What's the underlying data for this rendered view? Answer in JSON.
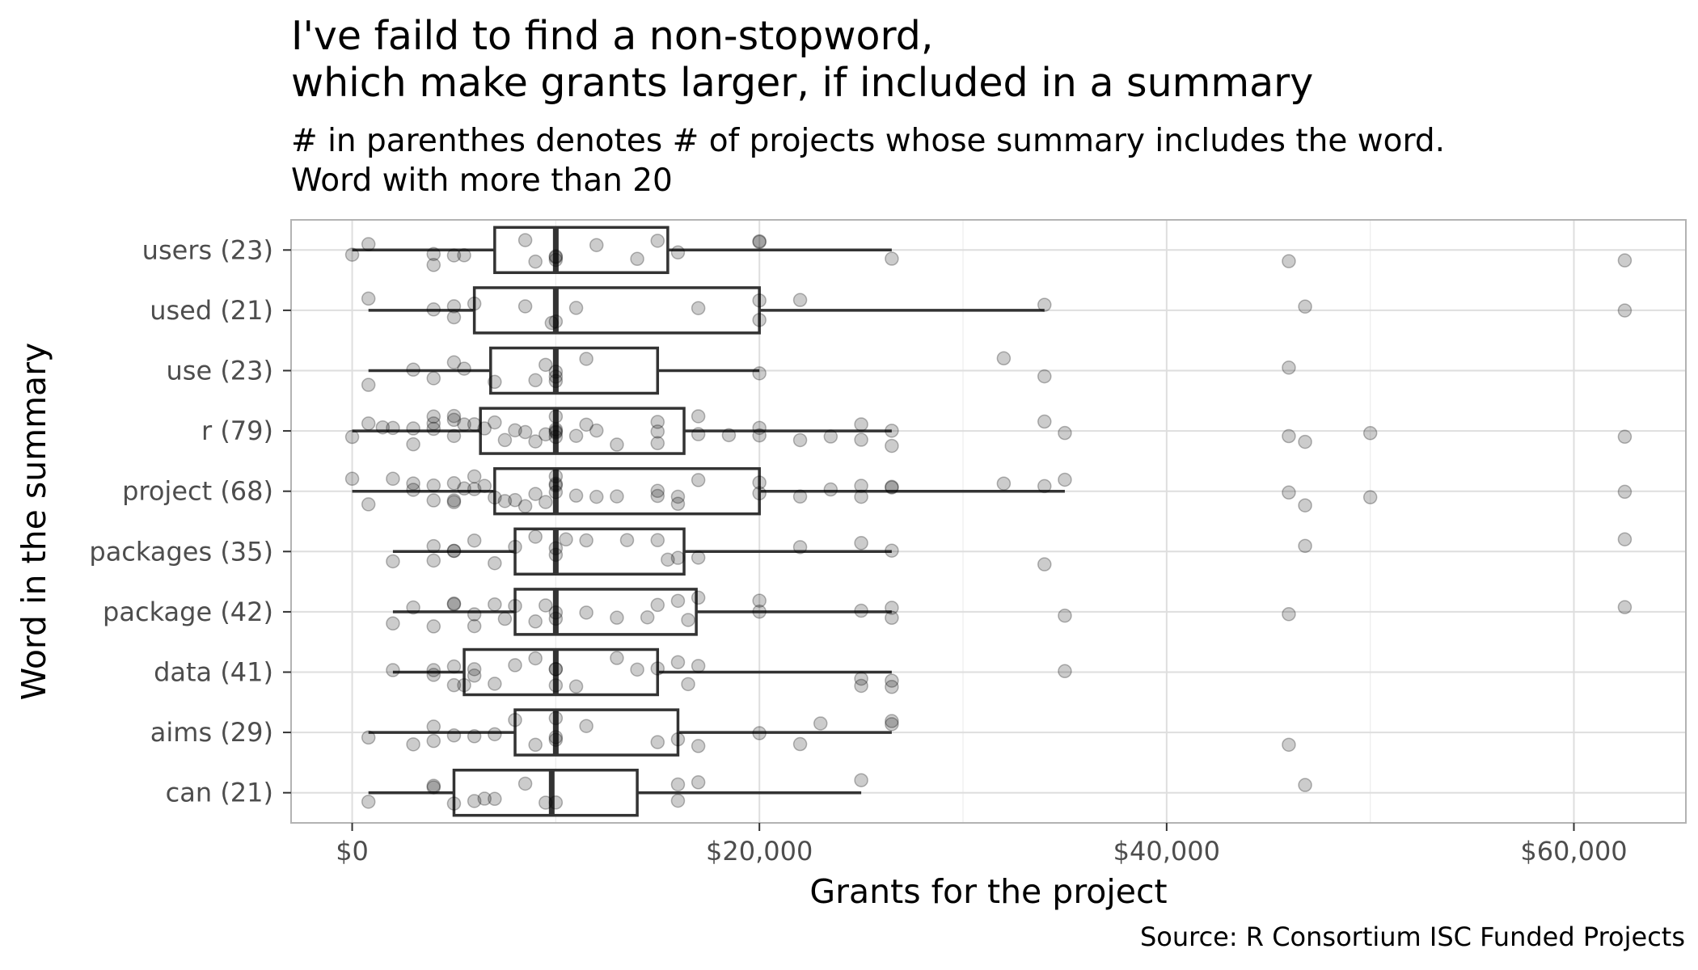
{
  "chart_data": {
    "type": "boxplot",
    "title": "I've faild to find a non-stopword,\nwhich make grants larger, if included in a summary",
    "subtitle": "# in parenthes denotes # of projects whose summary includes the word.\nWord with more than 20",
    "caption": "Source: R Consortium ISC Funded Projects",
    "xlabel": "Grants for the project",
    "ylabel": "Word in the summary",
    "xlim": [
      -3000,
      65500
    ],
    "x_ticks": [
      0,
      20000,
      40000,
      60000
    ],
    "x_tick_labels": [
      "$0",
      "$20,000",
      "$40,000",
      "$60,000"
    ],
    "grid": true,
    "point_color": "#000000",
    "point_alpha": 0.22,
    "categories": [
      "users (23)",
      "used (21)",
      "use (23)",
      "r (79)",
      "project (68)",
      "packages (35)",
      "package (42)",
      "data (41)",
      "aims (29)",
      "can (21)"
    ],
    "boxes": [
      {
        "category": "users (23)",
        "whisker_low": 0,
        "q1": 7000,
        "median": 10000,
        "q3": 15500,
        "whisker_high": 26500
      },
      {
        "category": "used (21)",
        "whisker_low": 800,
        "q1": 6000,
        "median": 10000,
        "q3": 20000,
        "whisker_high": 34000
      },
      {
        "category": "use (23)",
        "whisker_low": 800,
        "q1": 6800,
        "median": 10000,
        "q3": 15000,
        "whisker_high": 20000
      },
      {
        "category": "r (79)",
        "whisker_low": 0,
        "q1": 6300,
        "median": 10000,
        "q3": 16300,
        "whisker_high": 26500
      },
      {
        "category": "project (68)",
        "whisker_low": 0,
        "q1": 7000,
        "median": 10000,
        "q3": 20000,
        "whisker_high": 35000
      },
      {
        "category": "packages (35)",
        "whisker_low": 2000,
        "q1": 8000,
        "median": 10000,
        "q3": 16300,
        "whisker_high": 26500
      },
      {
        "category": "package (42)",
        "whisker_low": 2000,
        "q1": 8000,
        "median": 10000,
        "q3": 16900,
        "whisker_high": 26500
      },
      {
        "category": "data (41)",
        "whisker_low": 2000,
        "q1": 5500,
        "median": 10000,
        "q3": 15000,
        "whisker_high": 26500
      },
      {
        "category": "aims (29)",
        "whisker_low": 800,
        "q1": 8000,
        "median": 10000,
        "q3": 16000,
        "whisker_high": 26500
      },
      {
        "category": "can (21)",
        "whisker_low": 800,
        "q1": 5000,
        "median": 9800,
        "q3": 14000,
        "whisker_high": 25000
      }
    ],
    "points": [
      {
        "category": "users (23)",
        "x": [
          0,
          800,
          4000,
          4000,
          5000,
          5500,
          8500,
          9000,
          10000,
          10000,
          10000,
          12000,
          14000,
          15000,
          16000,
          20000,
          20000,
          26500,
          46000,
          62500
        ]
      },
      {
        "category": "used (21)",
        "x": [
          800,
          4000,
          5000,
          5000,
          6000,
          8500,
          9800,
          10000,
          11000,
          17000,
          20000,
          20000,
          22000,
          34000,
          46800,
          62500
        ]
      },
      {
        "category": "use (23)",
        "x": [
          800,
          3000,
          4000,
          5000,
          5500,
          7000,
          9000,
          9500,
          10000,
          10000,
          10000,
          11500,
          20000,
          32000,
          34000,
          46000
        ]
      },
      {
        "category": "r (79)",
        "x": [
          0,
          800,
          1500,
          2000,
          3000,
          3000,
          4000,
          4000,
          4000,
          5000,
          5000,
          5000,
          5500,
          6000,
          6500,
          7000,
          7500,
          8000,
          8500,
          9000,
          9500,
          10000,
          10000,
          10000,
          10000,
          10000,
          11000,
          11500,
          12000,
          13000,
          15000,
          15000,
          15000,
          17000,
          17000,
          18500,
          20000,
          20000,
          22000,
          23500,
          25000,
          25000,
          26500,
          26500,
          34000,
          35000,
          46000,
          46800,
          50000,
          62500
        ]
      },
      {
        "category": "project (68)",
        "x": [
          0,
          800,
          2000,
          3000,
          3000,
          4000,
          4000,
          5000,
          5000,
          5000,
          5500,
          6000,
          6000,
          6500,
          7000,
          7500,
          8000,
          8500,
          9000,
          9500,
          10000,
          10000,
          10000,
          10000,
          11000,
          12000,
          13000,
          15000,
          15000,
          16000,
          16000,
          17000,
          20000,
          20000,
          22000,
          23500,
          25000,
          25000,
          26500,
          26500,
          32000,
          34000,
          35000,
          46000,
          46800,
          50000,
          62500
        ]
      },
      {
        "category": "packages (35)",
        "x": [
          2000,
          4000,
          4000,
          5000,
          5000,
          6000,
          7000,
          8000,
          9000,
          10000,
          10000,
          10500,
          11500,
          13500,
          15000,
          15500,
          16000,
          17000,
          22000,
          25000,
          26500,
          34000,
          46800,
          62500
        ]
      },
      {
        "category": "package (42)",
        "x": [
          2000,
          3000,
          4000,
          5000,
          5000,
          6000,
          6000,
          7000,
          7500,
          8000,
          9000,
          9500,
          10000,
          10000,
          11500,
          13000,
          14500,
          15000,
          16000,
          16500,
          17000,
          20000,
          20000,
          25000,
          26500,
          26500,
          35000,
          46000,
          62500
        ]
      },
      {
        "category": "data (41)",
        "x": [
          2000,
          4000,
          4000,
          5000,
          5000,
          5500,
          6000,
          6000,
          7000,
          8000,
          9000,
          10000,
          10000,
          10000,
          11000,
          13000,
          14000,
          15000,
          16000,
          16500,
          17000,
          25000,
          25000,
          26500,
          26500,
          35000
        ]
      },
      {
        "category": "aims (29)",
        "x": [
          800,
          3000,
          4000,
          4000,
          5000,
          6000,
          7000,
          8000,
          9000,
          10000,
          10000,
          10000,
          11500,
          15000,
          16000,
          17000,
          20000,
          22000,
          23000,
          26500,
          26500,
          46000
        ]
      },
      {
        "category": "can (21)",
        "x": [
          800,
          4000,
          4000,
          5000,
          6000,
          6500,
          7000,
          8500,
          9500,
          10000,
          16000,
          16000,
          17000,
          25000,
          46800
        ]
      }
    ]
  }
}
